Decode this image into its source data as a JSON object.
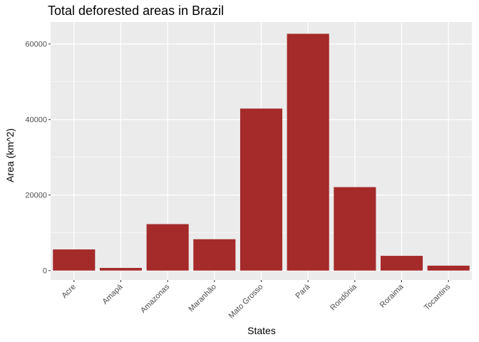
{
  "chart_data": {
    "type": "bar",
    "title": "Total deforested areas in Brazil",
    "xlabel": "States",
    "ylabel": "Area (km^2)",
    "categories": [
      "Acre",
      "Amapá",
      "Amazonas",
      "Maranhão",
      "Mato Grosso",
      "Pará",
      "Rondônia",
      "Roraima",
      "Tocantins"
    ],
    "values": [
      5600,
      700,
      12300,
      8300,
      42900,
      62700,
      22100,
      3900,
      1300
    ],
    "yticks": [
      0,
      20000,
      40000,
      60000
    ],
    "ytick_labels": [
      "0",
      "20000",
      "40000",
      "60000"
    ],
    "ylim": [
      -2500,
      65800
    ],
    "grid": true,
    "bar_color": "#A52A2A",
    "panel_color": "#EBEBEB"
  }
}
